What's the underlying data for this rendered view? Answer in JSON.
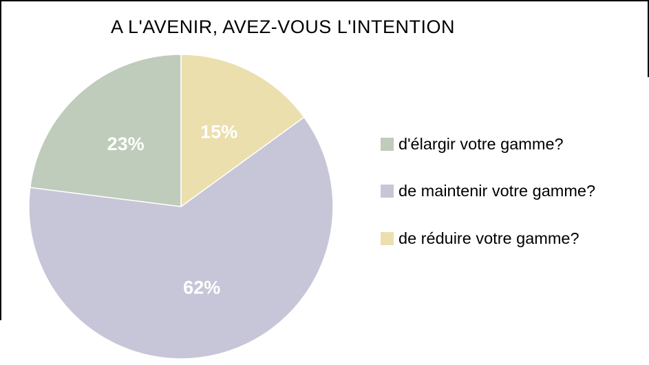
{
  "chart_data": {
    "type": "pie",
    "title": "A L'AVENIR, AVEZ-VOUS L'INTENTION",
    "slices": [
      {
        "label": "d'élargir votre gamme?",
        "value": 23,
        "display_label": "23%",
        "color": "#BFCBBB"
      },
      {
        "label": "de maintenir votre gamme?",
        "value": 62,
        "display_label": "62%",
        "color": "#C7C6D8"
      },
      {
        "label": "de réduire votre gamme?",
        "value": 15,
        "display_label": "15%",
        "color": "#EBDFAD"
      }
    ],
    "slice_label_color": "#FFFFFF",
    "slice_separator_color": "#FFFFFF",
    "legend_position": "right",
    "start_angle": "top",
    "draw_direction": "counter-clockwise",
    "background_color": "#FFFFFF",
    "frame_color": "#000000"
  }
}
